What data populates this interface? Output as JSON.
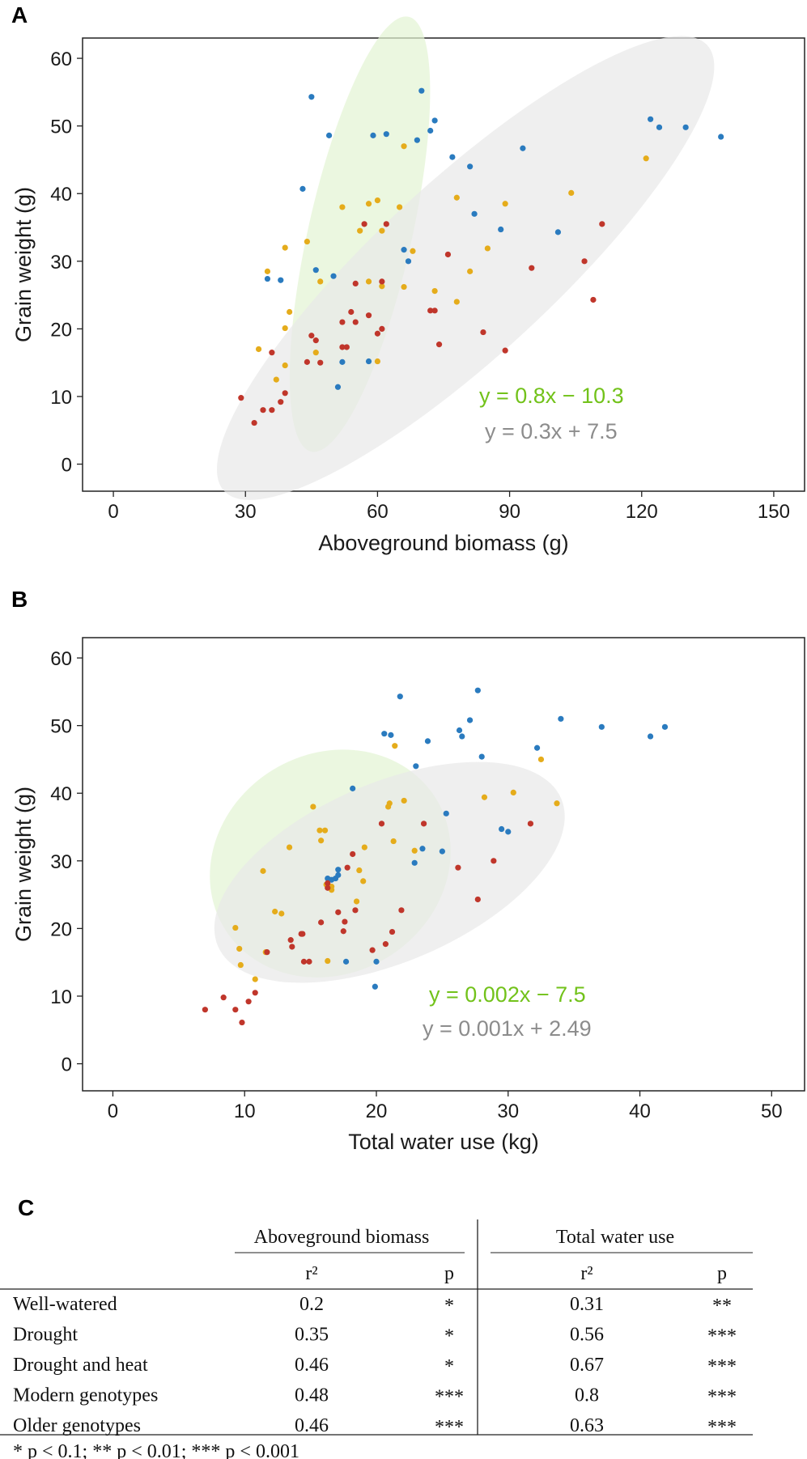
{
  "chart_data": [
    {
      "panel": "A",
      "type": "scatter",
      "title": "",
      "xlabel": "Aboveground biomass (g)",
      "ylabel": "Grain weight (g)",
      "xlim": [
        -7,
        157
      ],
      "ylim": [
        -4,
        63
      ],
      "xticks": [
        0,
        30,
        60,
        90,
        120,
        150
      ],
      "yticks": [
        0,
        10,
        20,
        30,
        40,
        50,
        60
      ],
      "grid": false,
      "colors": {
        "blue": "#2a7bbf",
        "yellow": "#e5ac1b",
        "red": "#c0362b"
      },
      "ellipses": [
        {
          "name": "green-ellipse",
          "cx": 56,
          "cy": 34,
          "rx": 34,
          "ry": 11,
          "angle_data_deg": 71,
          "fill": "#e3f3d3"
        },
        {
          "name": "gray-ellipse",
          "cx": 80,
          "cy": 29,
          "rx": 64,
          "ry": 14,
          "angle_data_deg": 31,
          "fill": "#e8e8e8"
        }
      ],
      "series": [
        {
          "name": "blue",
          "color": "#2a7bbf",
          "points": [
            [
              45,
              54.3
            ],
            [
              49,
              48.6
            ],
            [
              59,
              48.6
            ],
            [
              62,
              48.8
            ],
            [
              69,
              47.9
            ],
            [
              70,
              55.2
            ],
            [
              72,
              49.3
            ],
            [
              73,
              50.8
            ],
            [
              43,
              40.7
            ],
            [
              77,
              45.4
            ],
            [
              81,
              44
            ],
            [
              93,
              46.7
            ],
            [
              122,
              51
            ],
            [
              124,
              49.8
            ],
            [
              130,
              49.8
            ],
            [
              138,
              48.4
            ],
            [
              82,
              37
            ],
            [
              88,
              34.7
            ],
            [
              101,
              34.3
            ],
            [
              66,
              31.7
            ],
            [
              67,
              30
            ],
            [
              46,
              28.7
            ],
            [
              35,
              27.4
            ],
            [
              38,
              27.2
            ],
            [
              50,
              27.8
            ],
            [
              52,
              15.1
            ],
            [
              51,
              11.4
            ],
            [
              58,
              15.2
            ]
          ]
        },
        {
          "name": "yellow",
          "color": "#e5ac1b",
          "points": [
            [
              66,
              47
            ],
            [
              121,
              45.2
            ],
            [
              78,
              39.4
            ],
            [
              89,
              38.5
            ],
            [
              104,
              40.1
            ],
            [
              52,
              38
            ],
            [
              58,
              38.5
            ],
            [
              60,
              39
            ],
            [
              65,
              38
            ],
            [
              61,
              34.5
            ],
            [
              56,
              34.5
            ],
            [
              44,
              32.9
            ],
            [
              39,
              32
            ],
            [
              68,
              31.5
            ],
            [
              85,
              31.9
            ],
            [
              81,
              28.5
            ],
            [
              35,
              28.5
            ],
            [
              47,
              27
            ],
            [
              58,
              27
            ],
            [
              61,
              26.3
            ],
            [
              66,
              26.2
            ],
            [
              73,
              25.6
            ],
            [
              78,
              24
            ],
            [
              40,
              22.5
            ],
            [
              39,
              20.1
            ],
            [
              37,
              12.5
            ],
            [
              33,
              17
            ],
            [
              39,
              14.6
            ],
            [
              46,
              16.5
            ],
            [
              60,
              15.2
            ]
          ]
        },
        {
          "name": "red",
          "color": "#c0362b",
          "points": [
            [
              57,
              35.5
            ],
            [
              62,
              35.5
            ],
            [
              111,
              35.5
            ],
            [
              76,
              31
            ],
            [
              95,
              29
            ],
            [
              107,
              30
            ],
            [
              55,
              26.7
            ],
            [
              61,
              27
            ],
            [
              109,
              24.3
            ],
            [
              54,
              22.5
            ],
            [
              58,
              22
            ],
            [
              61,
              20
            ],
            [
              55,
              21
            ],
            [
              52,
              21
            ],
            [
              72,
              22.7
            ],
            [
              73,
              22.7
            ],
            [
              60,
              19.3
            ],
            [
              84,
              19.5
            ],
            [
              45,
              19
            ],
            [
              46,
              18.3
            ],
            [
              44,
              15.1
            ],
            [
              47,
              15
            ],
            [
              36,
              16.5
            ],
            [
              52,
              17.3
            ],
            [
              53,
              17.3
            ],
            [
              74,
              17.7
            ],
            [
              89,
              16.8
            ],
            [
              29,
              9.8
            ],
            [
              34,
              8
            ],
            [
              36,
              8
            ],
            [
              32,
              6.1
            ],
            [
              38,
              9.2
            ],
            [
              39,
              10.5
            ]
          ]
        }
      ],
      "equations": [
        {
          "label": "y = 0.8x − 10.3",
          "color": "#72c21a"
        },
        {
          "label": "y = 0.3x + 7.5",
          "color": "#8c8c8c"
        }
      ]
    },
    {
      "panel": "B",
      "type": "scatter",
      "title": "",
      "xlabel": "Total water use (kg)",
      "ylabel": "Grain weight (g)",
      "xlim": [
        -2.3,
        52.5
      ],
      "ylim": [
        -4,
        63
      ],
      "xticks": [
        0,
        10,
        20,
        30,
        40,
        50
      ],
      "yticks": [
        0,
        10,
        20,
        30,
        40,
        50,
        60
      ],
      "grid": false,
      "colors": {
        "blue": "#2a7bbf",
        "yellow": "#e5ac1b",
        "red": "#c0362b"
      },
      "ellipses": [
        {
          "name": "green-ellipse",
          "cx": 16.5,
          "cy": 29.6,
          "rx": 12.5,
          "ry": 10,
          "angle_data_deg": 50,
          "fill": "#e3f3d3"
        },
        {
          "name": "gray-ellipse",
          "cx": 21,
          "cy": 28.3,
          "rx": 17,
          "ry": 9,
          "angle_data_deg": 40,
          "fill": "#e8e8e8"
        }
      ],
      "series": [
        {
          "name": "blue",
          "color": "#2a7bbf",
          "points": [
            [
              21.8,
              54.3
            ],
            [
              27.7,
              55.2
            ],
            [
              20.6,
              48.8
            ],
            [
              21.1,
              48.6
            ],
            [
              26.3,
              49.3
            ],
            [
              27.1,
              50.8
            ],
            [
              23.9,
              47.7
            ],
            [
              26.5,
              48.4
            ],
            [
              34,
              51
            ],
            [
              37.1,
              49.8
            ],
            [
              40.8,
              48.4
            ],
            [
              41.9,
              49.8
            ],
            [
              32.2,
              46.7
            ],
            [
              28,
              45.4
            ],
            [
              23,
              44
            ],
            [
              18.2,
              40.7
            ],
            [
              25.3,
              37
            ],
            [
              29.5,
              34.7
            ],
            [
              30,
              34.3
            ],
            [
              23.5,
              31.8
            ],
            [
              25,
              31.4
            ],
            [
              22.9,
              29.7
            ],
            [
              17.1,
              28.7
            ],
            [
              17.1,
              27.9
            ],
            [
              16.9,
              27.4
            ],
            [
              16.3,
              27.4
            ],
            [
              16.6,
              27.2
            ],
            [
              17.7,
              15.1
            ],
            [
              20,
              15.1
            ],
            [
              19.9,
              11.4
            ]
          ]
        },
        {
          "name": "yellow",
          "color": "#e5ac1b",
          "points": [
            [
              21.4,
              47
            ],
            [
              32.5,
              45
            ],
            [
              28.2,
              39.4
            ],
            [
              30.4,
              40.1
            ],
            [
              33.7,
              38.5
            ],
            [
              22.1,
              38.9
            ],
            [
              21,
              38.5
            ],
            [
              20.9,
              38
            ],
            [
              15.2,
              38
            ],
            [
              15.7,
              34.5
            ],
            [
              16.1,
              34.5
            ],
            [
              15.8,
              33
            ],
            [
              21.3,
              32.9
            ],
            [
              13.4,
              32
            ],
            [
              19.1,
              32
            ],
            [
              22.9,
              31.5
            ],
            [
              11.4,
              28.5
            ],
            [
              18.7,
              28.6
            ],
            [
              16.2,
              26.5
            ],
            [
              16.6,
              26.2
            ],
            [
              16.6,
              25.7
            ],
            [
              19,
              27
            ],
            [
              18.5,
              24
            ],
            [
              12.3,
              22.5
            ],
            [
              12.8,
              22.2
            ],
            [
              9.3,
              20.1
            ],
            [
              11.6,
              16.5
            ],
            [
              9.6,
              17
            ],
            [
              9.7,
              14.6
            ],
            [
              10.8,
              12.5
            ],
            [
              16.3,
              15.2
            ]
          ]
        },
        {
          "name": "red",
          "color": "#c0362b",
          "points": [
            [
              20.4,
              35.5
            ],
            [
              23.6,
              35.5
            ],
            [
              31.7,
              35.5
            ],
            [
              18.2,
              31
            ],
            [
              28.9,
              30
            ],
            [
              26.2,
              29
            ],
            [
              17.8,
              29
            ],
            [
              16.3,
              26.7
            ],
            [
              27.7,
              24.3
            ],
            [
              16.3,
              26
            ],
            [
              21.9,
              22.7
            ],
            [
              18.4,
              22.7
            ],
            [
              17.1,
              22.4
            ],
            [
              17.6,
              21
            ],
            [
              15.8,
              20.9
            ],
            [
              21.2,
              19.5
            ],
            [
              17.5,
              19.6
            ],
            [
              14.4,
              19.2
            ],
            [
              14.3,
              19.2
            ],
            [
              13.5,
              18.3
            ],
            [
              13.6,
              17.3
            ],
            [
              20.7,
              17.7
            ],
            [
              19.7,
              16.8
            ],
            [
              11.7,
              16.5
            ],
            [
              14.5,
              15.1
            ],
            [
              14.9,
              15.1
            ],
            [
              7,
              8
            ],
            [
              8.4,
              9.8
            ],
            [
              9.3,
              8
            ],
            [
              10.3,
              9.2
            ],
            [
              10.8,
              10.5
            ],
            [
              9.8,
              6.1
            ]
          ]
        }
      ],
      "equations": [
        {
          "label": "y = 0.002x − 7.5",
          "color": "#72c21a"
        },
        {
          "label": "y = 0.001x + 2.49",
          "color": "#8c8c8c"
        }
      ]
    },
    {
      "panel": "C",
      "type": "table",
      "group_headers": [
        "Aboveground biomass",
        "Total water use"
      ],
      "sub_headers": [
        "r²",
        "p",
        "r²",
        "p"
      ],
      "rows": [
        {
          "label": "Well-watered",
          "cells": [
            "0.2",
            "*",
            "0.31",
            "**"
          ]
        },
        {
          "label": "Drought",
          "cells": [
            "0.35",
            "*",
            "0.56",
            "***"
          ]
        },
        {
          "label": "Drought and heat",
          "cells": [
            "0.46",
            "*",
            "0.67",
            "***"
          ]
        },
        {
          "label": "Modern genotypes",
          "cells": [
            "0.48",
            "***",
            "0.8",
            "***"
          ]
        },
        {
          "label": "Older genotypes",
          "cells": [
            "0.46",
            "***",
            "0.63",
            "***"
          ]
        }
      ],
      "footnote": "* p < 0.1; ** p < 0.01; *** p < 0.001"
    }
  ]
}
